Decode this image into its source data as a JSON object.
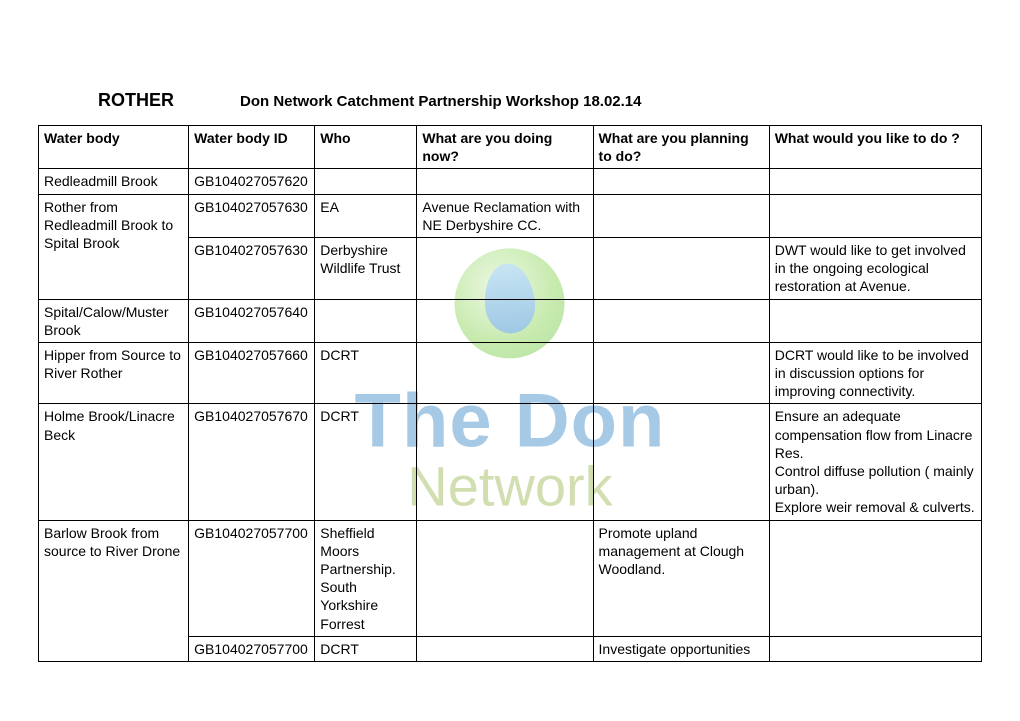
{
  "header": {
    "main": "ROTHER",
    "sub": "Don Network Catchment Partnership Workshop 18.02.14"
  },
  "watermark": {
    "line1": "The Don",
    "line2": "Network"
  },
  "table": {
    "columns": [
      "Water body",
      "Water body ID",
      "Who",
      "What are you doing now?",
      "What are you planning to do?",
      "What would you like to do ?"
    ],
    "rows": [
      {
        "c1": "Redleadmill Brook",
        "c2": "GB104027057620",
        "c3": "",
        "c4": "",
        "c5": "",
        "c6": "",
        "rowspan1": 1
      },
      {
        "c1": "Rother from Redleadmill Brook to Spital Brook",
        "c2": "GB104027057630",
        "c3": "EA",
        "c4": "Avenue Reclamation with NE Derbyshire CC.",
        "c5": "",
        "c6": "",
        "rowspan1": 2
      },
      {
        "c2": "GB104027057630",
        "c3": "Derbyshire Wildlife Trust",
        "c4": "",
        "c5": "",
        "c6": "DWT would like to get involved in the ongoing ecological restoration at Avenue."
      },
      {
        "c1": "Spital/Calow/Muster Brook",
        "c2": "GB104027057640",
        "c3": "",
        "c4": "",
        "c5": "",
        "c6": "",
        "rowspan1": 1
      },
      {
        "c1": "Hipper from Source to River Rother",
        "c2": "GB104027057660",
        "c3": "DCRT",
        "c4": "",
        "c5": "",
        "c6": "DCRT would like to be involved in discussion options for improving connectivity.",
        "rowspan1": 1
      },
      {
        "c1": "Holme Brook/Linacre Beck",
        "c2": "GB104027057670",
        "c3": "DCRT",
        "c4": "",
        "c5": "",
        "c6": "Ensure an adequate compensation flow from Linacre Res.\nControl diffuse pollution ( mainly urban).\nExplore weir removal & culverts.",
        "rowspan1": 1
      },
      {
        "c1": "Barlow Brook from source to River Drone",
        "c2": "GB104027057700",
        "c3": "Sheffield Moors Partnership. South Yorkshire Forrest",
        "c4": "",
        "c5": "Promote upland management at Clough Woodland.",
        "c6": "",
        "rowspan1": 2
      },
      {
        "c2": "GB104027057700",
        "c3": "DCRT",
        "c4": "",
        "c5": "Investigate opportunities",
        "c6": ""
      }
    ]
  }
}
